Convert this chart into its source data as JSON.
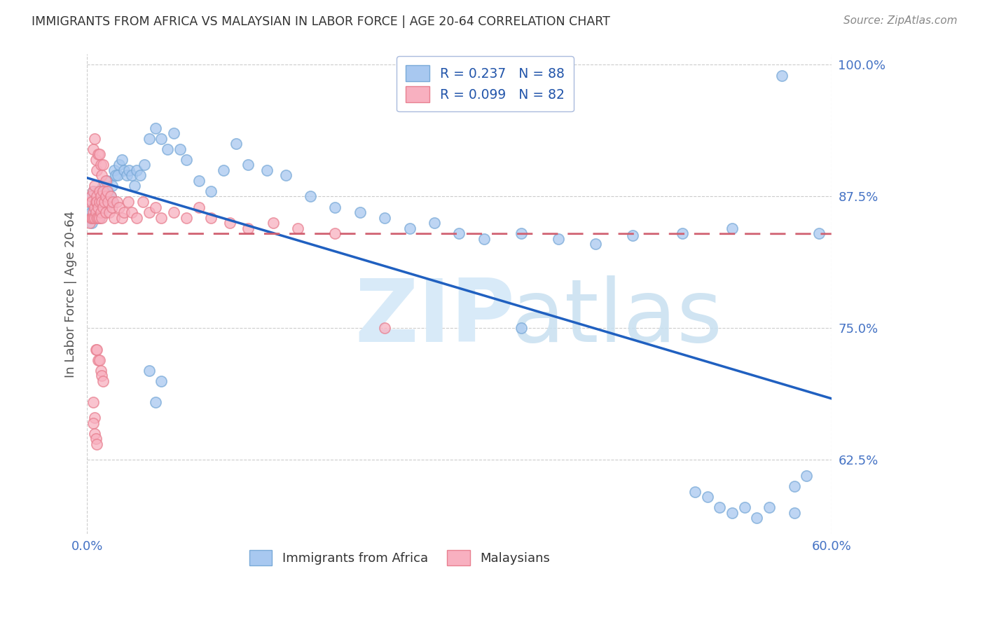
{
  "title": "IMMIGRANTS FROM AFRICA VS MALAYSIAN IN LABOR FORCE | AGE 20-64 CORRELATION CHART",
  "source": "Source: ZipAtlas.com",
  "ylabel": "In Labor Force | Age 20-64",
  "xlim": [
    0.0,
    0.6
  ],
  "ylim": [
    0.555,
    1.01
  ],
  "yticks": [
    0.625,
    0.75,
    0.875,
    1.0
  ],
  "ytick_labels": [
    "62.5%",
    "75.0%",
    "87.5%",
    "100.0%"
  ],
  "xticks": [
    0.0,
    0.1,
    0.2,
    0.3,
    0.4,
    0.5,
    0.6
  ],
  "xtick_labels": [
    "0.0%",
    "",
    "",
    "",
    "",
    "",
    "60.0%"
  ],
  "R_africa": 0.237,
  "N_africa": 88,
  "R_malaysian": 0.099,
  "N_malaysian": 82,
  "africa_fill_color": "#A8C8F0",
  "africa_edge_color": "#7AAAD8",
  "malaysian_fill_color": "#F8B0C0",
  "malaysian_edge_color": "#E88090",
  "trendline_africa_color": "#2060C0",
  "trendline_malaysian_color": "#D06070",
  "axis_label_color": "#4472C4",
  "title_color": "#333333",
  "source_color": "#888888",
  "grid_color": "#CCCCCC",
  "africa_x": [
    0.002,
    0.003,
    0.003,
    0.004,
    0.004,
    0.005,
    0.005,
    0.006,
    0.006,
    0.007,
    0.007,
    0.008,
    0.008,
    0.009,
    0.009,
    0.01,
    0.01,
    0.011,
    0.011,
    0.012,
    0.012,
    0.013,
    0.014,
    0.015,
    0.015,
    0.016,
    0.017,
    0.018,
    0.019,
    0.02,
    0.021,
    0.022,
    0.023,
    0.025,
    0.026,
    0.028,
    0.03,
    0.032,
    0.034,
    0.036,
    0.038,
    0.04,
    0.043,
    0.046,
    0.05,
    0.055,
    0.06,
    0.065,
    0.07,
    0.075,
    0.08,
    0.09,
    0.1,
    0.11,
    0.12,
    0.13,
    0.145,
    0.16,
    0.18,
    0.2,
    0.22,
    0.24,
    0.26,
    0.28,
    0.3,
    0.32,
    0.35,
    0.38,
    0.41,
    0.44,
    0.48,
    0.52,
    0.56,
    0.59,
    0.05,
    0.055,
    0.06,
    0.35,
    0.49,
    0.5,
    0.51,
    0.52,
    0.53,
    0.54,
    0.55,
    0.57,
    0.57,
    0.58
  ],
  "africa_y": [
    0.855,
    0.875,
    0.86,
    0.87,
    0.85,
    0.88,
    0.865,
    0.865,
    0.855,
    0.87,
    0.86,
    0.875,
    0.855,
    0.865,
    0.88,
    0.87,
    0.855,
    0.88,
    0.865,
    0.87,
    0.86,
    0.885,
    0.875,
    0.88,
    0.865,
    0.89,
    0.88,
    0.87,
    0.875,
    0.885,
    0.87,
    0.9,
    0.895,
    0.895,
    0.905,
    0.91,
    0.9,
    0.895,
    0.9,
    0.895,
    0.885,
    0.9,
    0.895,
    0.905,
    0.93,
    0.94,
    0.93,
    0.92,
    0.935,
    0.92,
    0.91,
    0.89,
    0.88,
    0.9,
    0.925,
    0.905,
    0.9,
    0.895,
    0.875,
    0.865,
    0.86,
    0.855,
    0.845,
    0.85,
    0.84,
    0.835,
    0.84,
    0.835,
    0.83,
    0.838,
    0.84,
    0.845,
    0.99,
    0.84,
    0.71,
    0.68,
    0.7,
    0.75,
    0.595,
    0.59,
    0.58,
    0.575,
    0.58,
    0.57,
    0.58,
    0.575,
    0.6,
    0.61
  ],
  "malaysian_x": [
    0.002,
    0.002,
    0.003,
    0.003,
    0.004,
    0.004,
    0.005,
    0.005,
    0.005,
    0.006,
    0.006,
    0.006,
    0.007,
    0.007,
    0.008,
    0.008,
    0.008,
    0.009,
    0.009,
    0.01,
    0.01,
    0.01,
    0.011,
    0.011,
    0.012,
    0.012,
    0.013,
    0.013,
    0.014,
    0.015,
    0.015,
    0.016,
    0.017,
    0.018,
    0.019,
    0.02,
    0.021,
    0.022,
    0.024,
    0.026,
    0.028,
    0.03,
    0.033,
    0.036,
    0.04,
    0.045,
    0.05,
    0.055,
    0.06,
    0.07,
    0.08,
    0.09,
    0.1,
    0.115,
    0.13,
    0.15,
    0.17,
    0.2,
    0.005,
    0.006,
    0.007,
    0.008,
    0.009,
    0.01,
    0.011,
    0.012,
    0.013,
    0.015,
    0.005,
    0.006,
    0.005,
    0.006,
    0.007,
    0.008,
    0.24,
    0.007,
    0.008,
    0.009,
    0.01,
    0.011,
    0.012,
    0.013
  ],
  "malaysian_y": [
    0.87,
    0.85,
    0.875,
    0.855,
    0.87,
    0.855,
    0.88,
    0.86,
    0.855,
    0.865,
    0.885,
    0.855,
    0.87,
    0.86,
    0.875,
    0.855,
    0.87,
    0.865,
    0.855,
    0.87,
    0.88,
    0.855,
    0.875,
    0.86,
    0.87,
    0.855,
    0.865,
    0.88,
    0.87,
    0.875,
    0.86,
    0.88,
    0.87,
    0.86,
    0.875,
    0.865,
    0.87,
    0.855,
    0.87,
    0.865,
    0.855,
    0.86,
    0.87,
    0.86,
    0.855,
    0.87,
    0.86,
    0.865,
    0.855,
    0.86,
    0.855,
    0.865,
    0.855,
    0.85,
    0.845,
    0.85,
    0.845,
    0.84,
    0.92,
    0.93,
    0.91,
    0.9,
    0.915,
    0.915,
    0.905,
    0.895,
    0.905,
    0.89,
    0.68,
    0.665,
    0.66,
    0.65,
    0.645,
    0.64,
    0.75,
    0.73,
    0.73,
    0.72,
    0.72,
    0.71,
    0.705,
    0.7
  ]
}
